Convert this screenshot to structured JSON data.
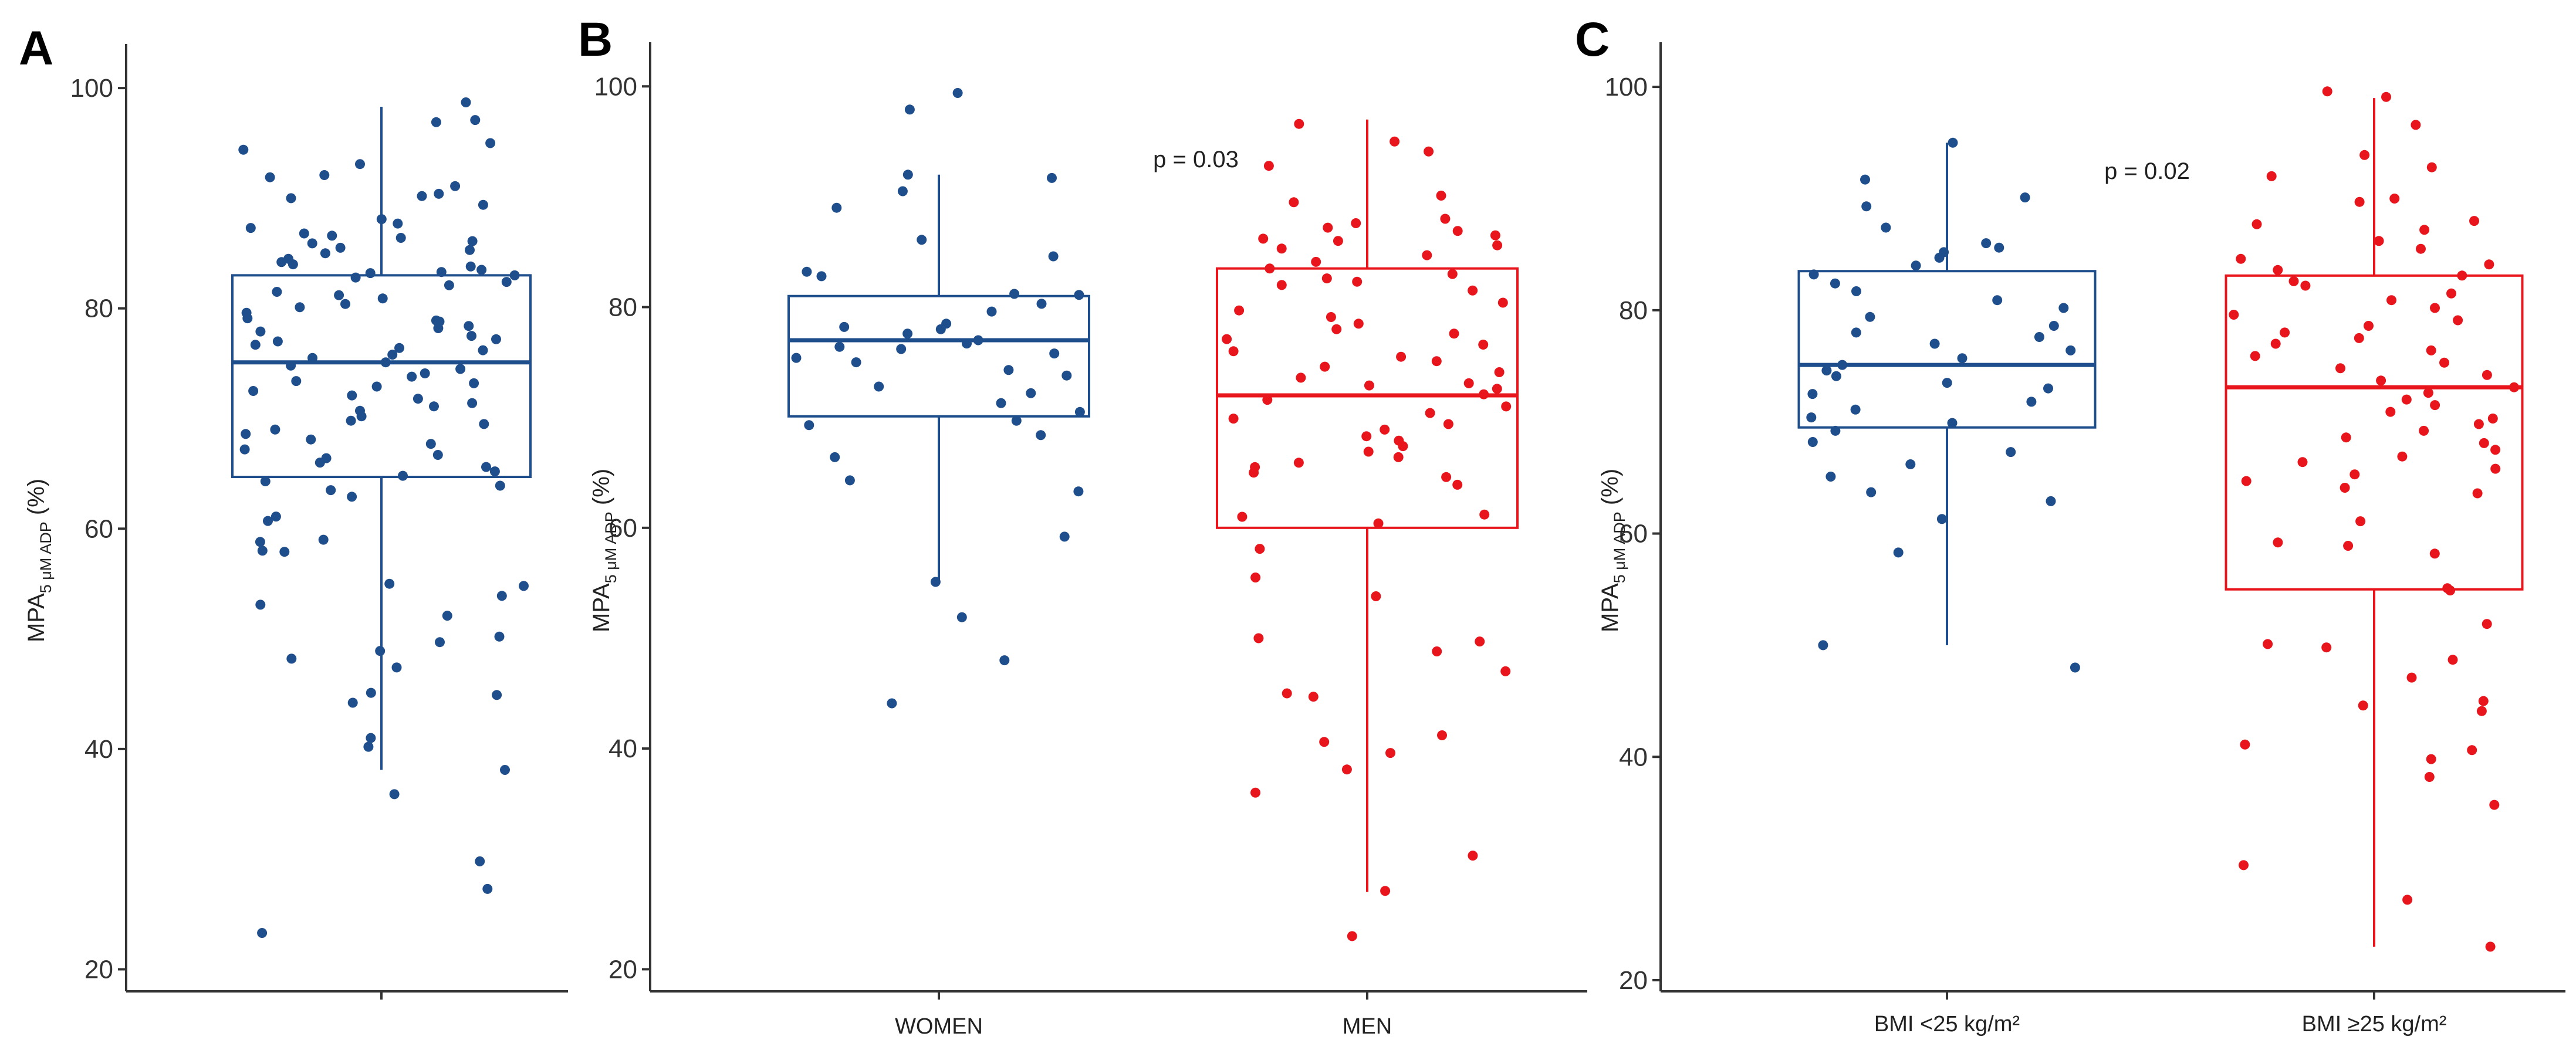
{
  "chart_data": [
    {
      "panel": "A",
      "type": "box",
      "ylabel": {
        "main": "MPA",
        "sub": "5 μM ADP",
        "unit": " (%)"
      },
      "ylim": [
        18,
        104
      ],
      "yticks": [
        20,
        40,
        60,
        80,
        100
      ],
      "pvalue": "",
      "categories": [
        ""
      ],
      "groups": [
        {
          "category": "",
          "color": "#1F4E8C",
          "box": {
            "q1": 64.7,
            "median": 75.1,
            "q3": 83.0,
            "whisker_low": 38.1,
            "whisker_high": 98.3
          },
          "points": [
            98.7,
            97.1,
            96.9,
            95.0,
            94.4,
            93.1,
            92.1,
            91.9,
            91.1,
            90.4,
            90.2,
            90.0,
            89.4,
            88.1,
            87.7,
            87.3,
            86.8,
            86.6,
            86.4,
            86.1,
            85.9,
            85.5,
            85.3,
            85.0,
            84.5,
            84.2,
            84.0,
            83.8,
            83.5,
            83.3,
            83.2,
            83.0,
            82.8,
            82.4,
            82.1,
            81.5,
            81.2,
            80.9,
            80.4,
            80.1,
            79.6,
            79.1,
            78.9,
            78.8,
            78.4,
            78.2,
            77.9,
            77.5,
            77.2,
            77.0,
            76.7,
            76.4,
            76.2,
            75.8,
            75.5,
            75.1,
            74.8,
            74.5,
            74.1,
            73.8,
            73.4,
            73.2,
            72.9,
            72.5,
            72.1,
            71.8,
            71.4,
            71.1,
            70.7,
            70.2,
            69.8,
            69.5,
            69.0,
            68.6,
            68.1,
            67.7,
            67.2,
            66.7,
            66.4,
            66.0,
            65.6,
            65.2,
            64.8,
            64.3,
            63.9,
            63.5,
            62.9,
            61.1,
            60.7,
            59.0,
            58.8,
            58.0,
            57.9,
            55.0,
            54.8,
            53.9,
            53.1,
            52.1,
            50.2,
            49.7,
            48.9,
            48.2,
            47.4,
            45.1,
            44.9,
            44.2,
            41.0,
            40.2,
            38.1,
            35.9,
            29.8,
            27.3,
            23.3
          ]
        }
      ]
    },
    {
      "panel": "B",
      "type": "box",
      "ylabel": {
        "main": "MPA",
        "sub": "5 μM ADP",
        "unit": " (%)"
      },
      "ylim": [
        18,
        104
      ],
      "yticks": [
        20,
        40,
        60,
        80,
        100
      ],
      "pvalue": "p = 0.03",
      "categories": [
        "WOMEN",
        "MEN"
      ],
      "groups": [
        {
          "category": "WOMEN",
          "color": "#1F4E8C",
          "box": {
            "q1": 70.1,
            "median": 77.0,
            "q3": 81.0,
            "whisker_low": 55.0,
            "whisker_high": 92.0
          },
          "points": [
            99.4,
            97.9,
            92.0,
            91.7,
            90.5,
            89.0,
            86.1,
            84.6,
            83.2,
            82.8,
            81.2,
            81.1,
            80.3,
            79.6,
            78.5,
            78.2,
            78.0,
            77.6,
            77.0,
            76.7,
            76.4,
            76.2,
            75.8,
            75.4,
            75.0,
            74.3,
            73.8,
            72.8,
            72.2,
            71.3,
            70.5,
            69.7,
            69.3,
            68.4,
            66.4,
            64.3,
            63.3,
            59.2,
            55.1,
            51.9,
            48.0,
            44.1
          ]
        },
        {
          "category": "MEN",
          "color": "#E8161C",
          "box": {
            "q1": 60.0,
            "median": 72.0,
            "q3": 83.5,
            "whisker_low": 27.0,
            "whisker_high": 97.0
          },
          "points": [
            96.6,
            95.0,
            94.1,
            92.8,
            90.1,
            89.5,
            88.0,
            87.6,
            87.2,
            86.9,
            86.5,
            86.2,
            86.0,
            85.6,
            85.3,
            84.7,
            84.1,
            83.5,
            83.0,
            82.6,
            82.3,
            82.0,
            81.5,
            80.4,
            79.7,
            79.1,
            78.5,
            78.0,
            77.6,
            77.1,
            76.6,
            76.0,
            75.5,
            75.1,
            74.6,
            74.1,
            73.6,
            73.1,
            72.9,
            72.6,
            72.1,
            71.6,
            71.0,
            70.4,
            69.9,
            69.4,
            68.9,
            68.3,
            67.9,
            67.4,
            66.9,
            66.4,
            65.9,
            65.5,
            65.0,
            64.6,
            63.9,
            61.2,
            61.0,
            60.4,
            58.1,
            55.5,
            53.8,
            50.0,
            49.7,
            48.8,
            47.0,
            45.0,
            44.7,
            41.2,
            40.6,
            39.6,
            38.1,
            36.0,
            30.3,
            27.1,
            23.0
          ]
        }
      ]
    },
    {
      "panel": "C",
      "type": "box",
      "ylabel": {
        "main": "MPA",
        "sub": "5 μM ADP",
        "unit": " (%)"
      },
      "ylim": [
        19,
        104
      ],
      "yticks": [
        20,
        40,
        60,
        80,
        100
      ],
      "pvalue": "p = 0.02",
      "categories": [
        "BMI <25 kg/m²",
        "BMI ≥25 kg/m²"
      ],
      "groups": [
        {
          "category": "BMI <25 kg/m²",
          "color": "#1F4E8C",
          "box": {
            "q1": 69.5,
            "median": 75.1,
            "q3": 83.5,
            "whisker_low": 50.0,
            "whisker_high": 95.0
          },
          "points": [
            95.0,
            91.7,
            90.1,
            89.3,
            87.4,
            86.0,
            85.6,
            85.2,
            84.7,
            84.0,
            83.2,
            82.4,
            81.7,
            80.9,
            80.2,
            79.4,
            78.6,
            78.0,
            77.6,
            77.0,
            76.4,
            75.7,
            75.1,
            74.6,
            74.1,
            73.5,
            73.0,
            72.5,
            71.8,
            71.1,
            70.4,
            69.9,
            69.2,
            68.2,
            67.3,
            66.2,
            65.1,
            63.7,
            62.9,
            61.3,
            58.3,
            50.0,
            48.0
          ]
        },
        {
          "category": "BMI ≥25 kg/m²",
          "color": "#E8161C",
          "box": {
            "q1": 55.0,
            "median": 73.1,
            "q3": 83.1,
            "whisker_low": 23.0,
            "whisker_high": 99.0
          },
          "points": [
            99.6,
            99.1,
            96.6,
            93.9,
            92.8,
            92.0,
            90.0,
            89.7,
            88.0,
            87.7,
            87.2,
            86.2,
            85.5,
            84.6,
            84.1,
            83.6,
            83.1,
            82.6,
            82.2,
            81.5,
            80.9,
            80.2,
            79.6,
            79.1,
            78.6,
            78.0,
            77.5,
            77.0,
            76.4,
            75.9,
            75.3,
            74.8,
            74.2,
            73.7,
            73.1,
            72.6,
            72.0,
            71.5,
            70.9,
            70.3,
            69.8,
            69.2,
            68.6,
            68.1,
            67.5,
            66.9,
            66.4,
            65.8,
            65.3,
            64.7,
            64.1,
            63.6,
            61.1,
            59.2,
            58.9,
            58.2,
            55.1,
            54.9,
            51.9,
            50.1,
            49.8,
            48.7,
            47.1,
            45.0,
            44.6,
            44.1,
            41.1,
            40.6,
            39.8,
            38.2,
            35.7,
            30.3,
            27.2,
            23.0
          ]
        }
      ]
    }
  ],
  "panel_letters": [
    "A",
    "B",
    "C"
  ]
}
